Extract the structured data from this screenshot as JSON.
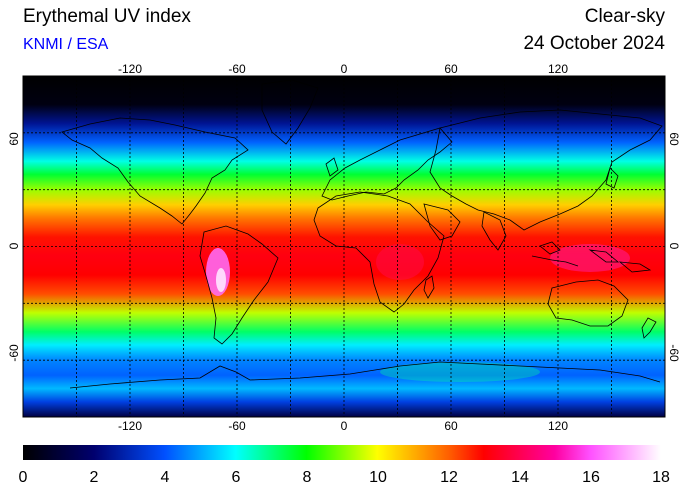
{
  "header": {
    "title": "Erythemal UV index",
    "producer": "KNMI / ESA",
    "mode": "Clear-sky",
    "date": "24 October 2024"
  },
  "map": {
    "projection": "equirectangular",
    "lon_range": [
      -180,
      180
    ],
    "lat_range": [
      -90,
      90
    ],
    "lon_ticks": [
      "-120",
      "-60",
      "0",
      "60",
      "120"
    ],
    "lat_ticks": [
      "60",
      "0",
      "-60"
    ],
    "gridlines": "dotted",
    "grid_lon": [
      -150,
      -120,
      -90,
      -60,
      -30,
      0,
      30,
      60,
      90,
      120,
      150
    ],
    "grid_lat": [
      60,
      30,
      0,
      -30,
      -60
    ],
    "coastline_color": "#000000"
  },
  "colorbar": {
    "min": 0,
    "max": 18,
    "tick_labels": [
      "0",
      "2",
      "4",
      "6",
      "8",
      "10",
      "12",
      "14",
      "16",
      "18"
    ],
    "stops": [
      {
        "value": 0,
        "color": "#000000"
      },
      {
        "value": 2,
        "color": "#00006e"
      },
      {
        "value": 4,
        "color": "#0050ff"
      },
      {
        "value": 6,
        "color": "#00ffff"
      },
      {
        "value": 8,
        "color": "#00ff00"
      },
      {
        "value": 10,
        "color": "#ffff00"
      },
      {
        "value": 12,
        "color": "#ff6000"
      },
      {
        "value": 13,
        "color": "#ff0000"
      },
      {
        "value": 15,
        "color": "#ff00a0"
      },
      {
        "value": 16,
        "color": "#ff50ff"
      },
      {
        "value": 18,
        "color": "#ffffff"
      }
    ]
  },
  "uv_profile": [
    {
      "lat": 90,
      "uv": 0
    },
    {
      "lat": 75,
      "uv": 0.3
    },
    {
      "lat": 65,
      "uv": 2.5
    },
    {
      "lat": 55,
      "uv": 4.2
    },
    {
      "lat": 45,
      "uv": 6.2
    },
    {
      "lat": 38,
      "uv": 7.6
    },
    {
      "lat": 30,
      "uv": 9.2
    },
    {
      "lat": 22,
      "uv": 10.6
    },
    {
      "lat": 15,
      "uv": 11.7
    },
    {
      "lat": 5,
      "uv": 12.8
    },
    {
      "lat": -5,
      "uv": 13.2
    },
    {
      "lat": -15,
      "uv": 13
    },
    {
      "lat": -25,
      "uv": 12.2
    },
    {
      "lat": -35,
      "uv": 9.5
    },
    {
      "lat": -45,
      "uv": 7.2
    },
    {
      "lat": -52,
      "uv": 5.8
    },
    {
      "lat": -60,
      "uv": 4.6
    },
    {
      "lat": -68,
      "uv": 4.2
    },
    {
      "lat": -75,
      "uv": 5.2
    },
    {
      "lat": -82,
      "uv": 3.6
    },
    {
      "lat": -90,
      "uv": 1.2
    }
  ]
}
